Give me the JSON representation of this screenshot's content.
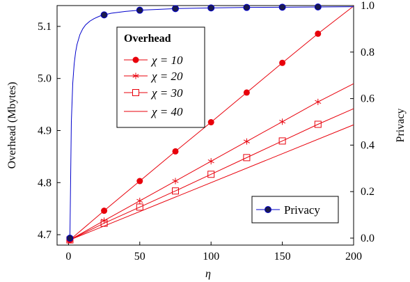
{
  "chart_data": {
    "type": "line",
    "xlabel": "η",
    "ylabel_left": "Overhead (Mbytes)",
    "ylabel_right": "Privacy",
    "xlim": [
      -8,
      200
    ],
    "ylim_left": [
      4.68,
      5.14
    ],
    "ylim_right": [
      -0.03,
      1.0
    ],
    "x_ticks": [
      0,
      50,
      100,
      150,
      200
    ],
    "y_left_ticks": [
      4.7,
      4.8,
      4.9,
      5.0,
      5.1
    ],
    "y_left_tick_labels": [
      "4.7",
      "4.8",
      "4.9",
      "5.0",
      "5.1"
    ],
    "y_right_ticks": [
      0.0,
      0.2,
      0.4,
      0.6,
      0.8,
      1.0
    ],
    "y_right_tick_labels": [
      "0.0",
      "0.2",
      "0.4",
      "0.6",
      "0.8",
      "1.0"
    ],
    "legend_overhead": {
      "title": "Overhead",
      "placement": "top-left",
      "entries": [
        {
          "label": "χ = 10",
          "marker": "circle"
        },
        {
          "label": "χ = 20",
          "marker": "star"
        },
        {
          "label": "χ = 30",
          "marker": "square"
        },
        {
          "label": "χ = 40",
          "marker": "none"
        }
      ]
    },
    "legend_privacy": {
      "placement": "bottom-right",
      "entries": [
        {
          "label": "Privacy",
          "marker": "circle"
        }
      ]
    },
    "series": [
      {
        "axis": "left",
        "color": "#e8000b",
        "marker": "circle",
        "x": [
          1,
          25,
          50,
          75,
          100,
          125,
          150,
          175,
          200
        ],
        "y": [
          4.69,
          4.746,
          4.803,
          4.86,
          4.916,
          4.973,
          5.03,
          5.086,
          5.139
        ],
        "marker_x": [
          1,
          25,
          50,
          75,
          100,
          125,
          150,
          175
        ]
      },
      {
        "axis": "left",
        "color": "#e8000b",
        "marker": "star",
        "x": [
          1,
          25,
          50,
          75,
          100,
          125,
          150,
          175,
          200
        ],
        "y": [
          4.69,
          4.727,
          4.765,
          4.803,
          4.841,
          4.879,
          4.917,
          4.955,
          4.99
        ],
        "marker_x": [
          1,
          25,
          50,
          75,
          100,
          125,
          150,
          175
        ]
      },
      {
        "axis": "left",
        "color": "#e8000b",
        "marker": "square",
        "x": [
          1,
          25,
          50,
          75,
          100,
          125,
          150,
          175,
          200
        ],
        "y": [
          4.69,
          4.722,
          4.753,
          4.784,
          4.816,
          4.848,
          4.88,
          4.912,
          4.942
        ],
        "marker_x": [
          1,
          25,
          50,
          75,
          100,
          125,
          150,
          175
        ]
      },
      {
        "axis": "left",
        "color": "#e8000b",
        "marker": "none",
        "x": [
          1,
          200
        ],
        "y": [
          4.69,
          4.911
        ]
      },
      {
        "axis": "right",
        "color": "#0000cc",
        "marker": "circle",
        "x": [
          1,
          2,
          3,
          4,
          5,
          6,
          8,
          10,
          12,
          15,
          18,
          22,
          25,
          30,
          40,
          50,
          75,
          100,
          125,
          150,
          175,
          200
        ],
        "y": [
          0.0,
          0.5,
          0.667,
          0.75,
          0.8,
          0.833,
          0.875,
          0.9,
          0.917,
          0.933,
          0.944,
          0.955,
          0.96,
          0.967,
          0.975,
          0.98,
          0.987,
          0.99,
          0.992,
          0.993,
          0.994,
          0.995
        ],
        "marker_x": [
          1,
          25,
          50,
          75,
          100,
          125,
          150,
          175
        ]
      }
    ]
  }
}
